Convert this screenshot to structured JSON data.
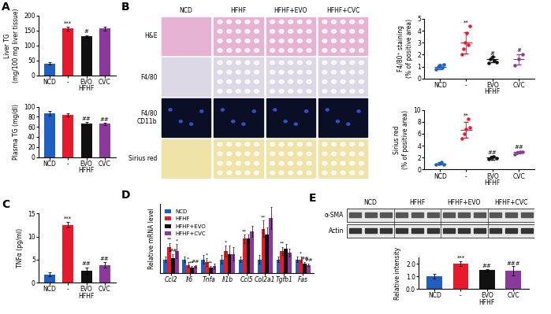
{
  "histology": {
    "panel": "B",
    "columns": [
      "NCD",
      "HFHF",
      "HFHF+EVO",
      "HFHF+CVC"
    ],
    "rows": [
      "H&E",
      "F4/80",
      "F4/80\nCD11b",
      "Sirius red"
    ]
  },
  "western_blot": {
    "panel": "E",
    "groups": [
      "NCD",
      "HFHF",
      "HFHF+EVO",
      "HFHF+CVC"
    ],
    "lanes_per_group": 3,
    "rows": [
      "α-SMA",
      "Actin"
    ]
  },
  "chart_data": [
    {
      "panel": "A",
      "type": "bar",
      "y_label": "Liver TG\n(mg/100 mg liver tissue)",
      "categories": [
        "NCD",
        "-",
        "EVO",
        "CVC"
      ],
      "group": {
        "label": "HFHF",
        "categories": [
          "-",
          "EVO",
          "CVC"
        ]
      },
      "values": [
        40,
        157,
        130,
        157
      ],
      "errors": [
        3,
        6,
        5,
        6
      ],
      "colors": [
        "#1f5fbf",
        "#e8192c",
        "#111111",
        "#8b3a9c"
      ],
      "stars": [
        null,
        "***",
        "#",
        null
      ],
      "ylim": [
        0,
        200
      ],
      "yticks": [
        0,
        50,
        100,
        150,
        200
      ]
    },
    {
      "panel": "A",
      "type": "bar",
      "y_label": "Plasma TG (mg/dl)",
      "categories": [
        "NCD",
        "-",
        "EVO",
        "CVC"
      ],
      "group": {
        "label": "HFHF",
        "categories": [
          "-",
          "EVO",
          "CVC"
        ]
      },
      "values": [
        87,
        84,
        66,
        66
      ],
      "errors": [
        4,
        3,
        3,
        2
      ],
      "colors": [
        "#1f5fbf",
        "#e8192c",
        "#111111",
        "#8b3a9c"
      ],
      "stars": [
        null,
        null,
        "##",
        "##"
      ],
      "ylim": [
        0,
        100
      ],
      "yticks": [
        0,
        20,
        40,
        60,
        80,
        100
      ]
    },
    {
      "panel": "B",
      "type": "dot",
      "y_label": "F4/80⁺ staining\n(% of positive area)",
      "categories": [
        "NCD",
        "-",
        "EVO",
        "CVC"
      ],
      "group": {
        "label": "HFHF",
        "categories": [
          "-",
          "EVO",
          "CVC"
        ]
      },
      "points": [
        [
          0.8,
          1.0,
          1.1,
          0.9,
          1.2
        ],
        [
          2.0,
          2.5,
          3.0,
          3.8,
          2.8,
          4.4
        ],
        [
          1.3,
          1.6,
          1.8,
          1.5,
          1.4
        ],
        [
          1.1,
          1.6,
          2.0
        ]
      ],
      "means": [
        1.0,
        3.0,
        1.6,
        1.6
      ],
      "sd": [
        0.2,
        0.9,
        0.2,
        0.45
      ],
      "colors": [
        "#1f5fbf",
        "#e8192c",
        "#111111",
        "#8b3a9c"
      ],
      "stars": [
        null,
        "**",
        "#",
        "#"
      ],
      "ylim": [
        0,
        5
      ],
      "yticks": [
        0,
        1,
        2,
        3,
        4,
        5
      ]
    },
    {
      "panel": "B",
      "type": "dot",
      "y_label": "Sirius red\n(% of positive area)",
      "categories": [
        "NCD",
        "-",
        "EVO",
        "CVC"
      ],
      "group": {
        "label": "HFHF",
        "categories": [
          "-",
          "EVO",
          "CVC"
        ]
      },
      "points": [
        [
          0.8,
          1.0,
          1.2,
          0.9
        ],
        [
          5.2,
          6.0,
          6.8,
          8.5,
          7.0
        ],
        [
          1.8,
          2.0,
          2.2,
          1.9
        ],
        [
          2.6,
          2.8,
          3.0,
          2.9
        ]
      ],
      "means": [
        1.0,
        6.7,
        2.0,
        2.9
      ],
      "sd": [
        0.2,
        1.3,
        0.3,
        0.2
      ],
      "colors": [
        "#1f5fbf",
        "#e8192c",
        "#111111",
        "#8b3a9c"
      ],
      "stars": [
        null,
        "**",
        "##",
        "##"
      ],
      "ylim": [
        0,
        10
      ],
      "yticks": [
        0,
        2,
        4,
        6,
        8,
        10
      ]
    },
    {
      "panel": "C",
      "type": "bar",
      "y_label": "TNFα (pg/ml)",
      "categories": [
        "NCD",
        "-",
        "EVO",
        "CVC"
      ],
      "group": {
        "label": "HFHF",
        "categories": [
          "-",
          "EVO",
          "CVC"
        ]
      },
      "values": [
        1.8,
        12.5,
        2.6,
        3.8
      ],
      "errors": [
        0.5,
        0.6,
        0.7,
        0.6
      ],
      "colors": [
        "#1f5fbf",
        "#e8192c",
        "#111111",
        "#8b3a9c"
      ],
      "stars": [
        null,
        "***",
        "##",
        "##"
      ],
      "ylim": [
        0,
        15
      ],
      "yticks": [
        0,
        5,
        10,
        15
      ]
    },
    {
      "panel": "D",
      "type": "grouped_bar",
      "y_label": "Relative mRNA level",
      "categories": [
        "Ccl2",
        "Il6",
        "Tnfa",
        "Il1b",
        "Ccl5",
        "Col2a1",
        "Tgfb1",
        "Fas"
      ],
      "series": [
        {
          "name": "NCD",
          "color": "#1f5fbf",
          "values": [
            1,
            1,
            1,
            1,
            1,
            1,
            1,
            1
          ],
          "errors": [
            0.2,
            0.2,
            0.3,
            0.3,
            0.2,
            0.3,
            0.2,
            0.2
          ],
          "stars": [
            null,
            null,
            null,
            null,
            null,
            null,
            null,
            null
          ]
        },
        {
          "name": "HFHF",
          "color": "#e8192c",
          "values": [
            1.9,
            0.6,
            0.8,
            1.6,
            2.5,
            3.2,
            1.6,
            1.0
          ],
          "errors": [
            0.3,
            0.2,
            0.3,
            0.4,
            0.3,
            0.6,
            0.3,
            0.2
          ],
          "stars": [
            "**",
            "*",
            "*",
            "*",
            "**",
            "**",
            "**",
            "*"
          ]
        },
        {
          "name": "HFHF+EVO",
          "color": "#111111",
          "values": [
            1.1,
            0.4,
            0.4,
            1.4,
            2.5,
            2.8,
            1.8,
            0.7
          ],
          "errors": [
            0.3,
            0.1,
            0.1,
            0.6,
            0.3,
            0.5,
            0.3,
            0.1
          ],
          "stars": [
            "##",
            "**",
            "**",
            null,
            null,
            null,
            null,
            "##"
          ]
        },
        {
          "name": "HFHF+CVC",
          "color": "#8b3a9c",
          "values": [
            1.6,
            0.5,
            0.5,
            1.4,
            3.0,
            4.0,
            1.5,
            0.6
          ],
          "errors": [
            0.5,
            0.1,
            0.2,
            0.5,
            0.4,
            0.8,
            0.3,
            0.1
          ],
          "stars": [
            "*",
            "##",
            null,
            null,
            null,
            null,
            null,
            "##"
          ]
        }
      ],
      "legend": "upper left",
      "tick_labels": "x",
      "ylim": [
        0,
        5
      ]
    },
    {
      "panel": "E",
      "type": "bar",
      "y_label": "Relative intensity",
      "categories": [
        "NCD",
        "-",
        "EVO",
        "CVC"
      ],
      "group": {
        "label": "HFHF",
        "categories": [
          "-",
          "EVO",
          "CVC"
        ]
      },
      "values": [
        1.0,
        2.0,
        1.5,
        1.45
      ],
      "errors": [
        0.2,
        0.2,
        0.1,
        0.35
      ],
      "colors": [
        "#1f5fbf",
        "#e8192c",
        "#111111",
        "#8b3a9c"
      ],
      "stars": [
        null,
        "***",
        "##",
        "###"
      ],
      "ylim": [
        0,
        2.5
      ],
      "yticks": [
        {
          "value": 0,
          "label": "0.0"
        },
        {
          "value": 1,
          "label": "1.0"
        },
        {
          "value": 2,
          "label": "2.0"
        }
      ]
    }
  ]
}
